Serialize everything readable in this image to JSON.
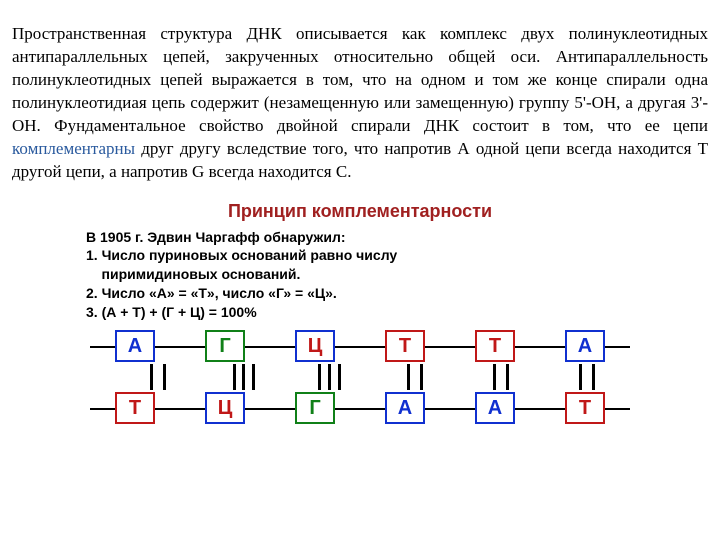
{
  "text": {
    "paragraph_pre": "Пространственная структура ДНК описывается как комплекс двух полинуклеотидных антипараллельных цепей, закрученных относительно общей оси. Антипараллельность полинуклеотидных цепей выражается в том, что на одном и том же конце спирали одна полинуклеотидиая цепь содержит (незамещенную или замещенную) группу 5'-ОН, а другая 3'-ОН. Фундаментальное свойство двойной спирали ДНК состоит в том, что ее цепи ",
    "highlight": "комплементарны",
    "paragraph_post": " друг другу вследствие того, что напротив А одной цепи всегда находится Т другой цепи, а напротив G всегда находится С."
  },
  "figure": {
    "title": "Принцип комплементарности",
    "title_color": "#a02020",
    "intro_line": "В 1905 г. Эдвин Чаргафф обнаружил:",
    "rule1": "1. Число пуриновых оснований равно числу",
    "rule1b": "    пиримидиновых оснований.",
    "rule2": "2. Число «А» = «Т», число «Г» = «Ц».",
    "rule3": "3. (А + Т) + (Г + Ц) = 100%"
  },
  "diagram": {
    "bases": {
      "A": {
        "label": "А",
        "text_color": "#1030d0",
        "border_color": "#1030d0"
      },
      "T": {
        "label": "Т",
        "text_color": "#c01818",
        "border_color": "#c01818"
      },
      "G": {
        "label": "Г",
        "text_color": "#108018",
        "border_color": "#108018"
      },
      "C": {
        "label": "Ц",
        "text_color": "#c01818",
        "border_color": "#1030d0"
      }
    },
    "top_row": [
      "A",
      "G",
      "C",
      "T",
      "T",
      "A"
    ],
    "bottom_row": [
      "T",
      "C",
      "G",
      "A",
      "A",
      "T"
    ],
    "bonds": [
      2,
      3,
      3,
      2,
      2,
      2
    ]
  }
}
